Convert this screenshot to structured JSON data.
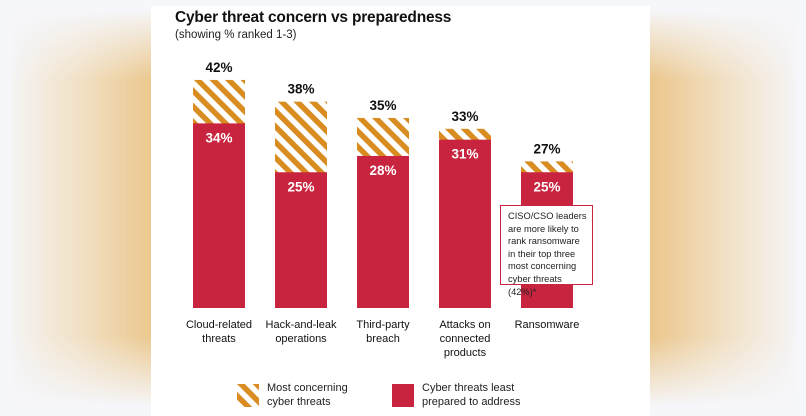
{
  "chart_data": {
    "type": "bar",
    "title": "Cyber threat concern vs preparedness",
    "subtitle": "(showing % ranked 1-3)",
    "categories": [
      "Cloud-related\nthreats",
      "Hack-and-leak\noperations",
      "Third-party\nbreach",
      "Attacks on\nconnected\nproducts",
      "Ransomware"
    ],
    "series": [
      {
        "name": "Most concerning cyber threats",
        "values": [
          42,
          38,
          35,
          33,
          27
        ],
        "labels": [
          "42%",
          "38%",
          "35%",
          "33%",
          "27%"
        ],
        "color": "#d98c1f",
        "pattern": "diagonal-stripes"
      },
      {
        "name": "Cyber threats least prepared to address",
        "values": [
          34,
          25,
          28,
          31,
          25
        ],
        "labels": [
          "34%",
          "25%",
          "28%",
          "31%",
          "25%"
        ],
        "color": "#c8243f"
      }
    ],
    "ylim": [
      0,
      42
    ],
    "xlabel": "",
    "ylabel": "",
    "grid": false,
    "legend": {
      "position": "bottom",
      "items": [
        "Most concerning\ncyber threats",
        "Cyber threats least\nprepared to address"
      ]
    },
    "annotation": "CISO/CSO leaders are more likely to rank ransomware in their top three most concerning cyber threats (42%)*"
  },
  "colors": {
    "stripe": "#d98c1f",
    "red": "#c8243f",
    "panel": "#ffffff",
    "background": "#f6f7fb"
  }
}
